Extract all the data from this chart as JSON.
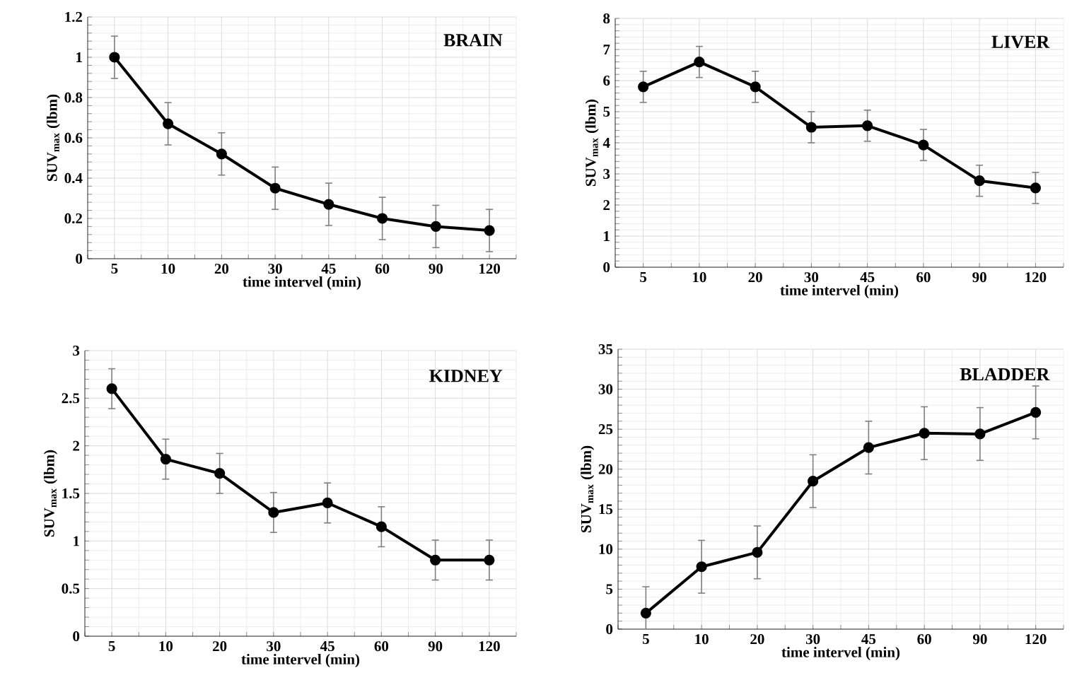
{
  "chart_data": [
    {
      "type": "line",
      "title": "BRAIN",
      "xlabel": "time intervel (min)",
      "ylabel": "SUV$_{max}$ (lbm)",
      "categories": [
        "5",
        "10",
        "20",
        "30",
        "45",
        "60",
        "90",
        "120"
      ],
      "series": [
        {
          "color": "#000000",
          "values": [
            1.0,
            0.67,
            0.52,
            0.35,
            0.27,
            0.2,
            0.16,
            0.14
          ],
          "errors": [
            0.105,
            0.105,
            0.105,
            0.105,
            0.105,
            0.105,
            0.105,
            0.105
          ]
        }
      ],
      "ylim": [
        0,
        1.2
      ],
      "yticks": [
        0,
        0.2,
        0.4,
        0.6,
        0.8,
        1,
        1.2
      ],
      "grid": true,
      "marker": "circle",
      "line_style": "solid"
    },
    {
      "type": "line",
      "title": "LIVER",
      "xlabel": "time intervel (min)",
      "ylabel": "SUV$_{max}$ (lbm)",
      "categories": [
        "5",
        "10",
        "20",
        "30",
        "45",
        "60",
        "90",
        "120"
      ],
      "series": [
        {
          "color": "#000000",
          "values": [
            5.8,
            6.6,
            5.8,
            4.5,
            4.55,
            3.93,
            2.78,
            2.55
          ],
          "errors": [
            0.5,
            0.5,
            0.5,
            0.5,
            0.5,
            0.5,
            0.5,
            0.5
          ]
        }
      ],
      "ylim": [
        0,
        8
      ],
      "yticks": [
        0,
        1,
        2,
        3,
        4,
        5,
        6,
        7,
        8
      ],
      "grid": true,
      "marker": "circle",
      "line_style": "solid"
    },
    {
      "type": "line",
      "title": "KIDNEY",
      "xlabel": "time intervel (min)",
      "ylabel": "SUV$_{max}$ (lbm)",
      "categories": [
        "5",
        "10",
        "20",
        "30",
        "45",
        "60",
        "90",
        "120"
      ],
      "series": [
        {
          "color": "#000000",
          "values": [
            2.6,
            1.86,
            1.71,
            1.3,
            1.4,
            1.15,
            0.8,
            0.8
          ],
          "errors": [
            0.21,
            0.21,
            0.21,
            0.21,
            0.21,
            0.21,
            0.21,
            0.21
          ]
        }
      ],
      "ylim": [
        0,
        3
      ],
      "yticks": [
        0,
        0.5,
        1,
        1.5,
        2,
        2.5,
        3
      ],
      "grid": true,
      "marker": "circle",
      "line_style": "solid"
    },
    {
      "type": "line",
      "title": "BLADDER",
      "xlabel": "time intervel (min)",
      "ylabel": "SUV$_{max}$ (lbm)",
      "categories": [
        "5",
        "10",
        "20",
        "30",
        "45",
        "60",
        "90",
        "120"
      ],
      "series": [
        {
          "color": "#000000",
          "values": [
            2.0,
            7.8,
            9.6,
            18.5,
            22.7,
            24.5,
            24.4,
            27.1
          ],
          "errors": [
            3.3,
            3.3,
            3.3,
            3.3,
            3.3,
            3.3,
            3.3,
            3.3
          ]
        }
      ],
      "ylim": [
        0,
        35
      ],
      "yticks": [
        0,
        5,
        10,
        15,
        20,
        25,
        30,
        35
      ],
      "grid": true,
      "marker": "circle",
      "line_style": "solid"
    }
  ]
}
